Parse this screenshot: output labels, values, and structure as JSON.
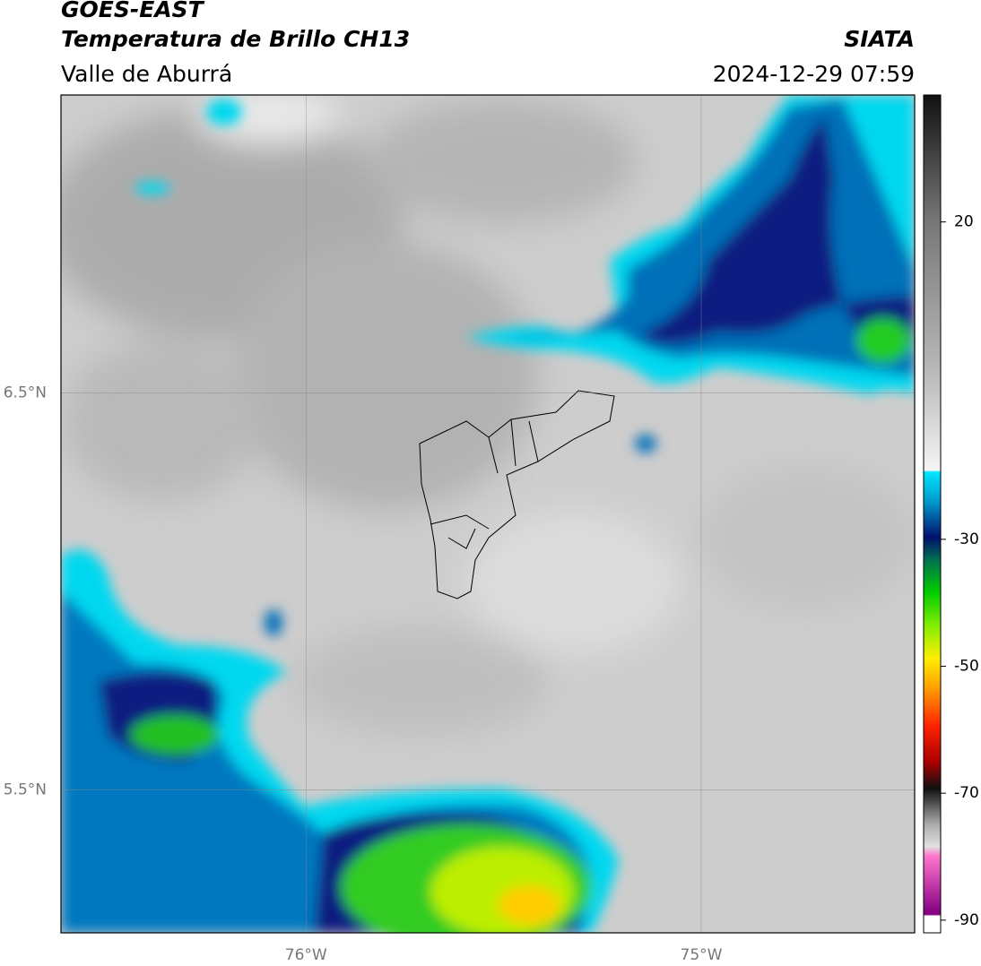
{
  "header": {
    "title": "GOES-EAST",
    "subtitle": "Temperatura de Brillo CH13",
    "region": "Valle de Aburrá",
    "source": "SIATA",
    "datetime": "2024-12-29 07:59"
  },
  "map": {
    "type": "map",
    "xlim": [
      -76.62,
      -74.46
    ],
    "ylim": [
      5.14,
      7.25
    ],
    "xticks": [
      {
        "value": -76,
        "label": "76°W"
      },
      {
        "value": -75,
        "label": "75°W"
      }
    ],
    "yticks": [
      {
        "value": 6.5,
        "label": "6.5°N"
      },
      {
        "value": 5.5,
        "label": "5.5°N"
      }
    ],
    "grid": true
  },
  "colorbar": {
    "lim": [
      -92,
      40
    ],
    "ticks": [
      20,
      -30,
      -50,
      -70,
      -90
    ]
  }
}
